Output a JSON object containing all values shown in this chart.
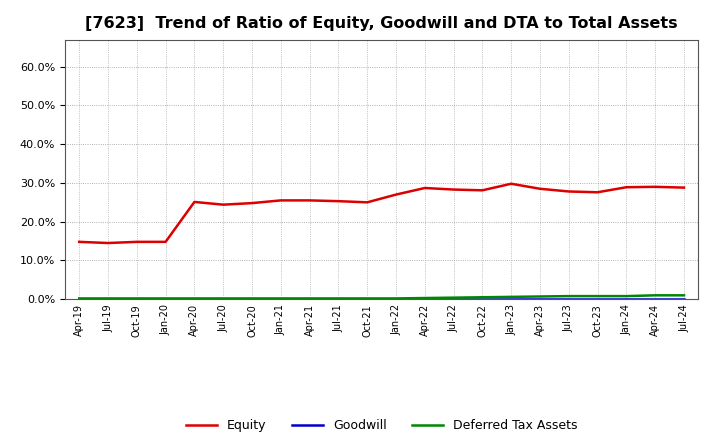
{
  "title": "[7623]  Trend of Ratio of Equity, Goodwill and DTA to Total Assets",
  "title_fontsize": 11.5,
  "background_color": "#ffffff",
  "plot_bg_color": "#ffffff",
  "grid_color": "#999999",
  "x_labels": [
    "Apr-19",
    "Jul-19",
    "Oct-19",
    "Jan-20",
    "Apr-20",
    "Jul-20",
    "Oct-20",
    "Jan-21",
    "Apr-21",
    "Jul-21",
    "Oct-21",
    "Jan-22",
    "Apr-22",
    "Jul-22",
    "Oct-22",
    "Jan-23",
    "Apr-23",
    "Jul-23",
    "Oct-23",
    "Jan-24",
    "Apr-24",
    "Jul-24"
  ],
  "equity": [
    0.148,
    0.145,
    0.148,
    0.148,
    0.251,
    0.244,
    0.248,
    0.255,
    0.255,
    0.253,
    0.25,
    0.27,
    0.287,
    0.283,
    0.281,
    0.298,
    0.285,
    0.278,
    0.276,
    0.289,
    0.29,
    0.288
  ],
  "goodwill": [
    0.001,
    0.001,
    0.001,
    0.001,
    0.001,
    0.001,
    0.001,
    0.001,
    0.001,
    0.001,
    0.001,
    0.001,
    0.001,
    0.001,
    0.001,
    0.001,
    0.001,
    0.001,
    0.001,
    0.001,
    0.001,
    0.001
  ],
  "dta": [
    0.002,
    0.002,
    0.002,
    0.002,
    0.002,
    0.002,
    0.002,
    0.002,
    0.002,
    0.002,
    0.002,
    0.002,
    0.003,
    0.004,
    0.005,
    0.006,
    0.007,
    0.008,
    0.008,
    0.008,
    0.01,
    0.01
  ],
  "equity_color": "#dd0000",
  "goodwill_color": "#0000cc",
  "dta_color": "#008800",
  "ylim": [
    0.0,
    0.67
  ],
  "yticks": [
    0.0,
    0.1,
    0.2,
    0.3,
    0.4,
    0.5,
    0.6
  ],
  "legend_labels": [
    "Equity",
    "Goodwill",
    "Deferred Tax Assets"
  ],
  "line_width": 1.8
}
